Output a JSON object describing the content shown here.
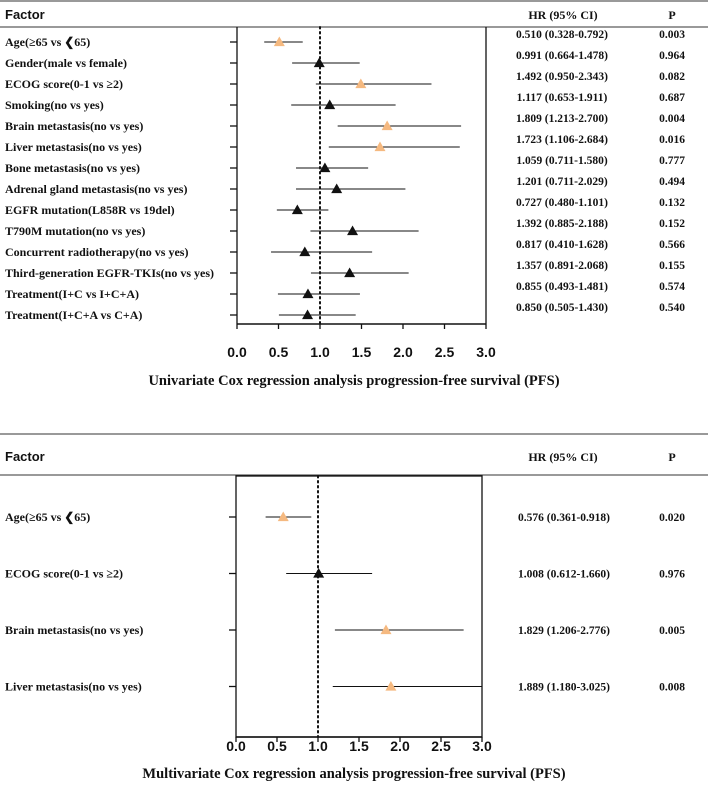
{
  "chart_data": [
    {
      "type": "forest",
      "headers": {
        "factor": "Factor",
        "hr": "HR (95% CI)",
        "p": "P"
      },
      "title": "Univariate Cox regression analysis progression-free survival (PFS)",
      "xlim": [
        0.0,
        3.0
      ],
      "xticks": [
        "0.0",
        "0.5",
        "1.0",
        "1.5",
        "2.0",
        "2.5",
        "3.0"
      ],
      "reference_line": 1.0,
      "rows": [
        {
          "factor": "Age(≥65 vs ❮65)",
          "hr": 0.51,
          "lo": 0.328,
          "hi": 0.792,
          "ci_text": "0.510 (0.328-0.792)",
          "p": "0.003",
          "significant": true
        },
        {
          "factor": "Gender(male vs female)",
          "hr": 0.991,
          "lo": 0.664,
          "hi": 1.478,
          "ci_text": "0.991 (0.664-1.478)",
          "p": "0.964",
          "significant": false
        },
        {
          "factor": "ECOG score(0-1 vs ≥2)",
          "hr": 1.492,
          "lo": 0.95,
          "hi": 2.343,
          "ci_text": "1.492 (0.950-2.343)",
          "p": "0.082",
          "significant": true
        },
        {
          "factor": "Smoking(no vs yes)",
          "hr": 1.117,
          "lo": 0.653,
          "hi": 1.911,
          "ci_text": "1.117 (0.653-1.911)",
          "p": "0.687",
          "significant": false
        },
        {
          "factor": "Brain metastasis(no vs yes)",
          "hr": 1.809,
          "lo": 1.213,
          "hi": 2.7,
          "ci_text": "1.809 (1.213-2.700)",
          "p": "0.004",
          "significant": true
        },
        {
          "factor": "Liver metastasis(no vs yes)",
          "hr": 1.723,
          "lo": 1.106,
          "hi": 2.684,
          "ci_text": "1.723 (1.106-2.684)",
          "p": "0.016",
          "significant": true
        },
        {
          "factor": "Bone metastasis(no vs yes)",
          "hr": 1.059,
          "lo": 0.711,
          "hi": 1.58,
          "ci_text": "1.059 (0.711-1.580)",
          "p": "0.777",
          "significant": false
        },
        {
          "factor": "Adrenal gland metastasis(no vs yes)",
          "hr": 1.201,
          "lo": 0.711,
          "hi": 2.029,
          "ci_text": "1.201 (0.711-2.029)",
          "p": "0.494",
          "significant": false
        },
        {
          "factor": "EGFR mutation(L858R vs 19del)",
          "hr": 0.727,
          "lo": 0.48,
          "hi": 1.101,
          "ci_text": "0.727 (0.480-1.101)",
          "p": "0.132",
          "significant": false
        },
        {
          "factor": "T790M mutation(no vs yes)",
          "hr": 1.392,
          "lo": 0.885,
          "hi": 2.188,
          "ci_text": "1.392 (0.885-2.188)",
          "p": "0.152",
          "significant": false
        },
        {
          "factor": "Concurrent radiotherapy(no vs yes)",
          "hr": 0.817,
          "lo": 0.41,
          "hi": 1.628,
          "ci_text": "0.817 (0.410-1.628)",
          "p": "0.566",
          "significant": false
        },
        {
          "factor": "Third-generation EGFR-TKIs(no vs yes)",
          "hr": 1.357,
          "lo": 0.891,
          "hi": 2.068,
          "ci_text": "1.357 (0.891-2.068)",
          "p": "0.155",
          "significant": false
        },
        {
          "factor": "Treatment(I+C vs I+C+A)",
          "hr": 0.855,
          "lo": 0.493,
          "hi": 1.481,
          "ci_text": "0.855 (0.493-1.481)",
          "p": "0.574",
          "significant": false
        },
        {
          "factor": "Treatment(I+C+A vs C+A)",
          "hr": 0.85,
          "lo": 0.505,
          "hi": 1.43,
          "ci_text": "0.850 (0.505-1.430)",
          "p": "0.540",
          "significant": false
        }
      ]
    },
    {
      "type": "forest",
      "headers": {
        "factor": "Factor",
        "hr": "HR (95% CI)",
        "p": "P"
      },
      "title": "Multivariate Cox regression analysis progression-free survival (PFS)",
      "xlim": [
        0.0,
        3.0
      ],
      "xticks": [
        "0.0",
        "0.5",
        "1.0",
        "1.5",
        "2.0",
        "2.5",
        "3.0"
      ],
      "reference_line": 1.0,
      "rows": [
        {
          "factor": "Age(≥65 vs ❮65)",
          "hr": 0.576,
          "lo": 0.361,
          "hi": 0.918,
          "ci_text": "0.576 (0.361-0.918)",
          "p": "0.020",
          "significant": true
        },
        {
          "factor": "ECOG score(0-1 vs ≥2)",
          "hr": 1.008,
          "lo": 0.612,
          "hi": 1.66,
          "ci_text": "1.008 (0.612-1.660)",
          "p": "0.976",
          "significant": false
        },
        {
          "factor": "Brain metastasis(no vs yes)",
          "hr": 1.829,
          "lo": 1.206,
          "hi": 2.776,
          "ci_text": "1.829 (1.206-2.776)",
          "p": "0.005",
          "significant": true
        },
        {
          "factor": "Liver metastasis(no vs yes)",
          "hr": 1.889,
          "lo": 1.18,
          "hi": 3.025,
          "ci_text": "1.889 (1.180-3.025)",
          "p": "0.008",
          "significant": true
        }
      ]
    }
  ],
  "colors": {
    "significant": "#F5B980",
    "significant_text": "#E8822E",
    "default": "#111111"
  },
  "marker_icon": "triangle-marker-icon"
}
